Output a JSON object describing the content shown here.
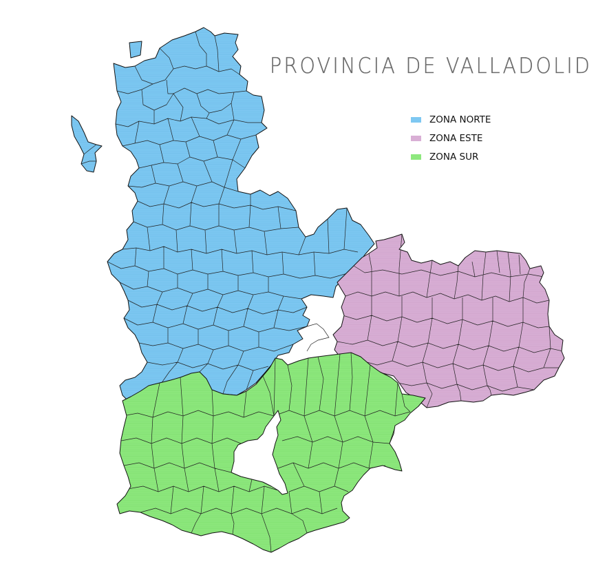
{
  "map": {
    "title": "PROVINCIA DE VALLADOLID",
    "legend": [
      {
        "label": "ZONA NORTE",
        "color": "#7ec8f2"
      },
      {
        "label": "ZONA ESTE",
        "color": "#d9afd5"
      },
      {
        "label": "ZONA SUR",
        "color": "#8ee87e"
      }
    ]
  }
}
